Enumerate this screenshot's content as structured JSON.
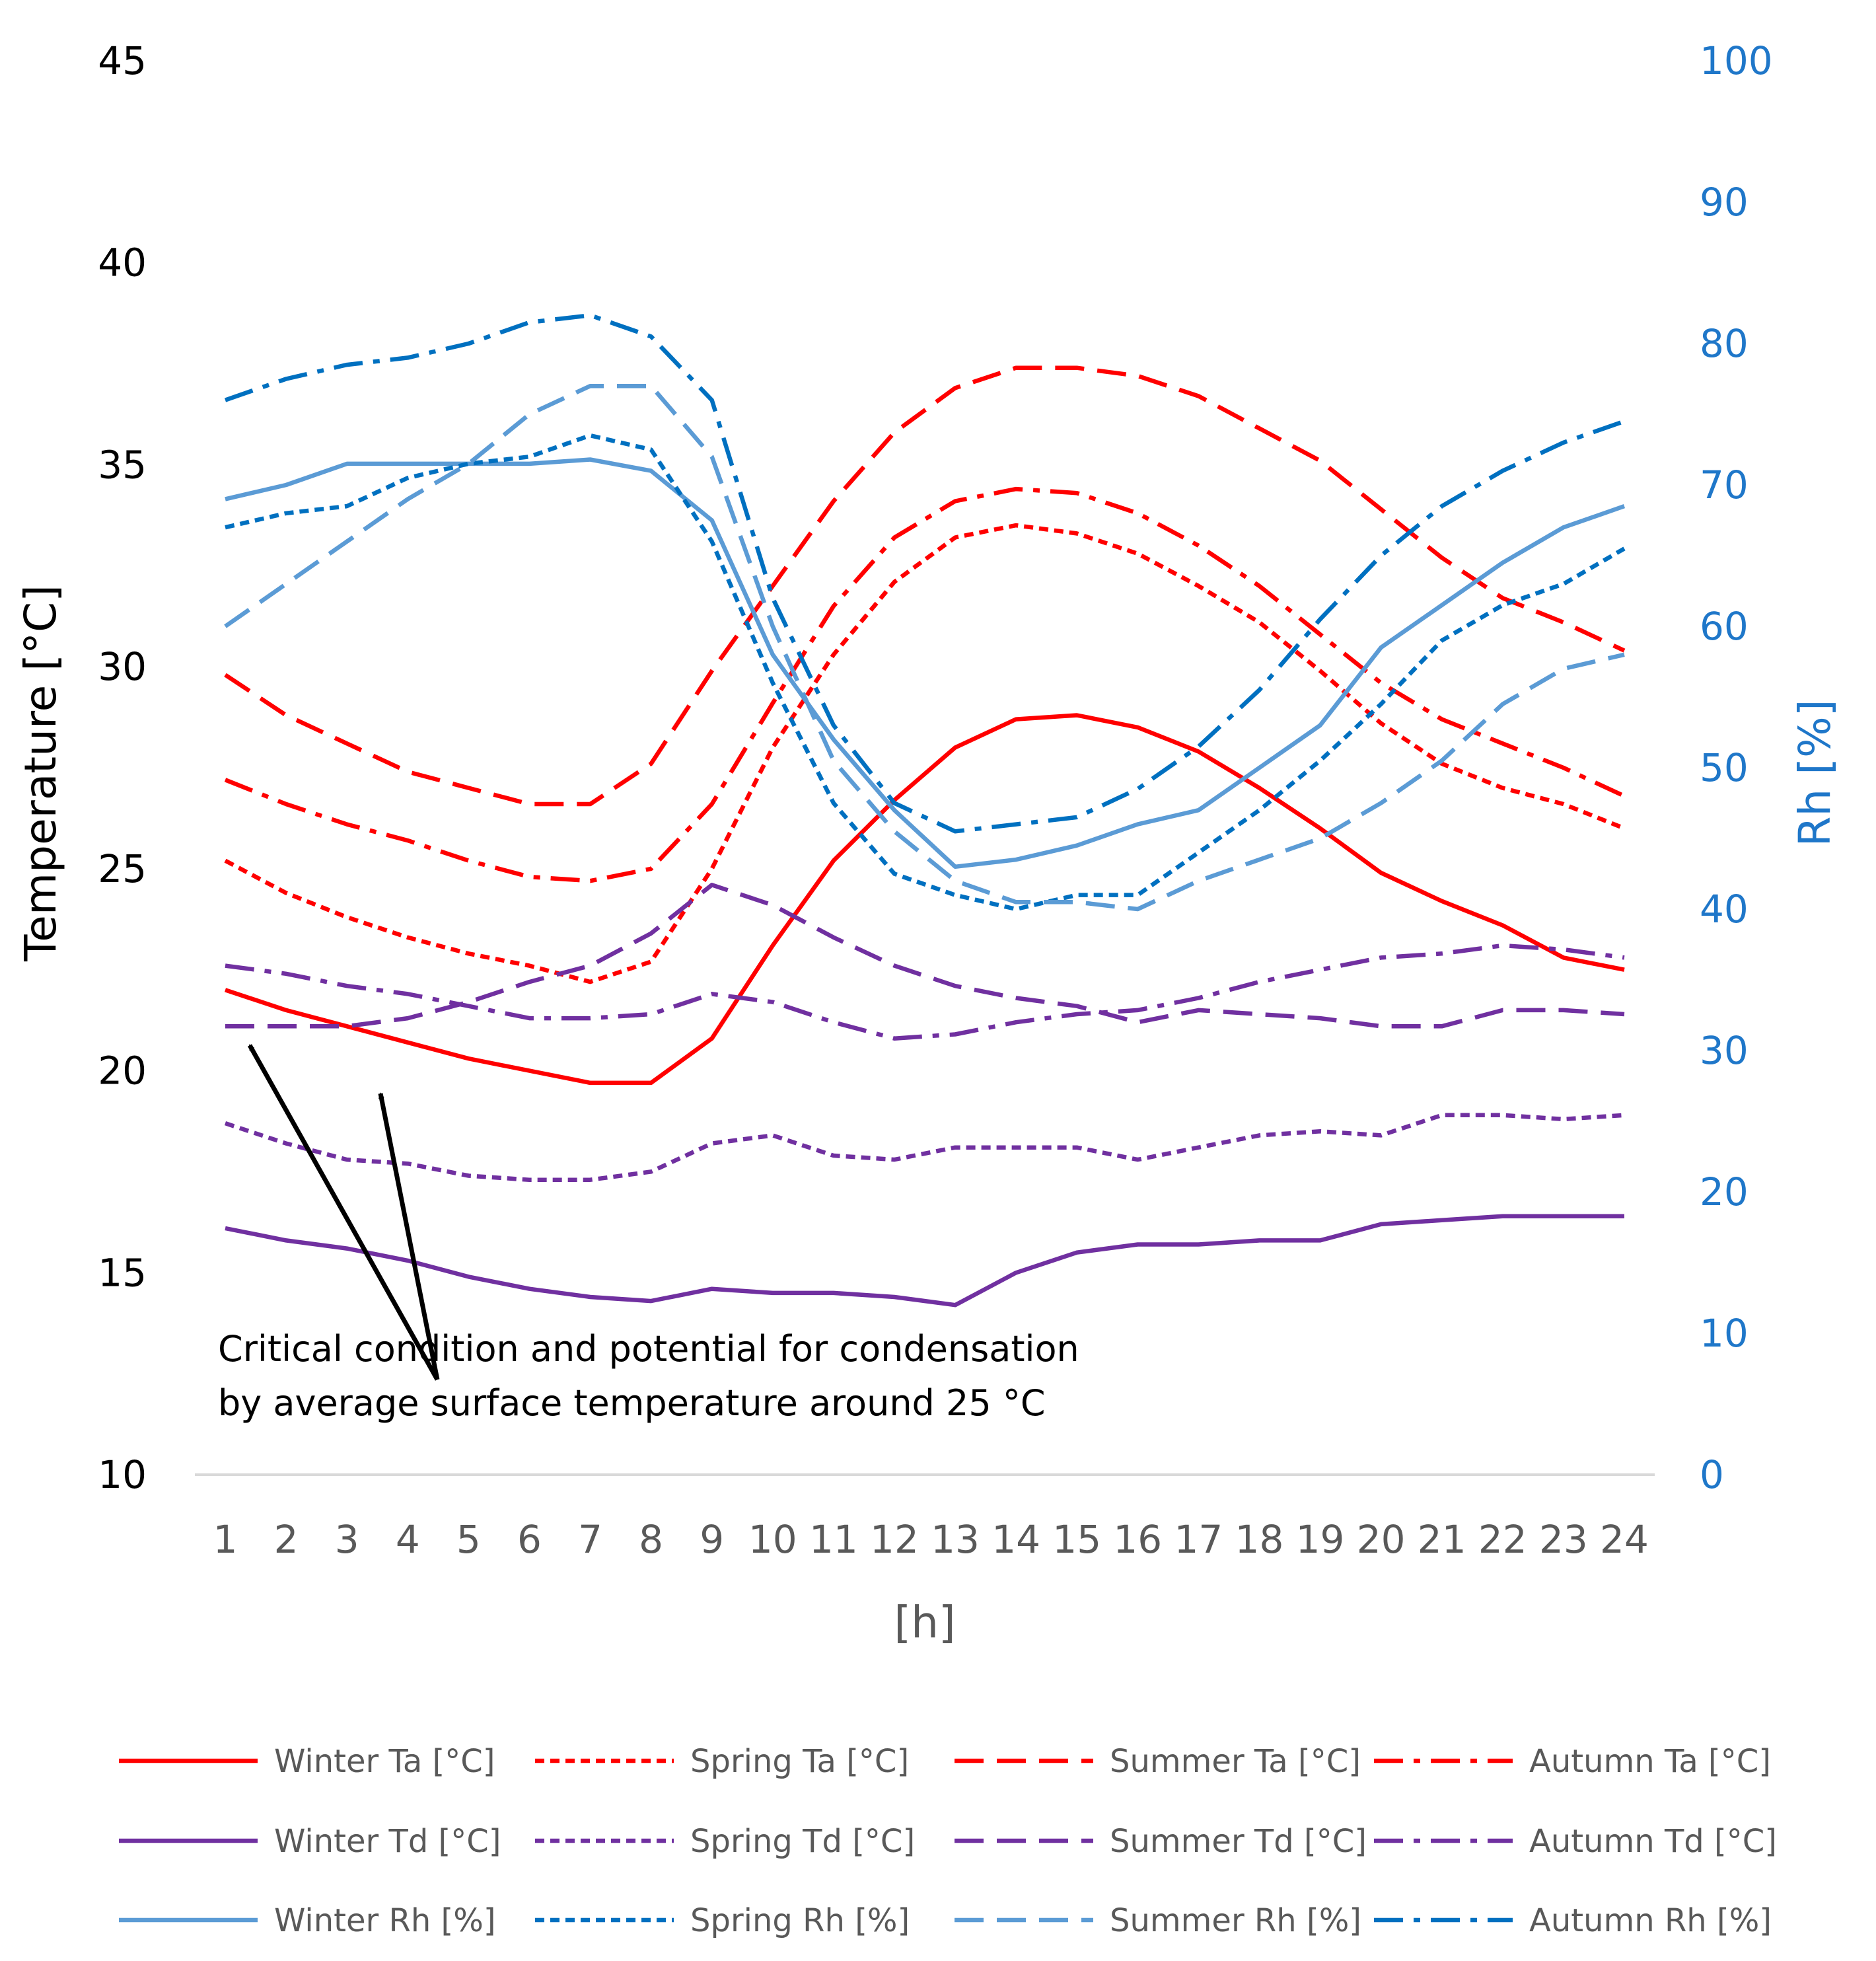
{
  "chart_data": {
    "type": "line",
    "title": "",
    "xlabel": "[h]",
    "ylabel_left": "Temperature [°C]",
    "ylabel_right": "Rh [%]",
    "categories": [
      "1",
      "2",
      "3",
      "4",
      "5",
      "6",
      "7",
      "8",
      "9",
      "10",
      "11",
      "12",
      "13",
      "14",
      "15",
      "16",
      "17",
      "18",
      "19",
      "20",
      "21",
      "22",
      "23",
      "24"
    ],
    "ylim_left": [
      10,
      45
    ],
    "yticks_left": [
      "10",
      "15",
      "20",
      "25",
      "30",
      "35",
      "40",
      "45"
    ],
    "ylim_right": [
      0,
      100
    ],
    "yticks_right": [
      "0",
      "10",
      "20",
      "30",
      "40",
      "50",
      "60",
      "70",
      "80",
      "90",
      "100"
    ],
    "colors": {
      "ta": "#FF0000",
      "td": "#7030A0",
      "rh_light": "#5B9BD5",
      "rh_dark": "#0070C0",
      "arrow": "#000000",
      "axis": "#D9D9D9"
    },
    "annotation": {
      "line1": "Critical condition and potential for condensation",
      "line2": "by average surface temperature around 25 °C"
    },
    "series": [
      {
        "name": "Winter Ta [°C]",
        "axis": "left",
        "color": "#FF0000",
        "style": "solid",
        "values": [
          22.0,
          21.5,
          21.1,
          20.7,
          20.3,
          20.0,
          19.7,
          19.7,
          20.8,
          23.1,
          25.2,
          26.7,
          28.0,
          28.7,
          28.8,
          28.5,
          27.9,
          27.0,
          26.0,
          24.9,
          24.2,
          23.6,
          22.8,
          22.5
        ]
      },
      {
        "name": "Spring Ta [°C]",
        "axis": "left",
        "color": "#FF0000",
        "style": "dot",
        "values": [
          25.2,
          24.4,
          23.8,
          23.3,
          22.9,
          22.6,
          22.2,
          22.7,
          25.0,
          28.0,
          30.3,
          32.1,
          33.2,
          33.5,
          33.3,
          32.8,
          32.0,
          31.1,
          29.9,
          28.6,
          27.6,
          27.0,
          26.6,
          26.0
        ]
      },
      {
        "name": "Summer Ta [°C]",
        "axis": "left",
        "color": "#FF0000",
        "style": "dash",
        "values": [
          29.8,
          28.8,
          28.1,
          27.4,
          27.0,
          26.6,
          26.6,
          27.6,
          29.9,
          32.0,
          34.1,
          35.8,
          36.9,
          37.4,
          37.4,
          37.2,
          36.7,
          35.9,
          35.1,
          33.9,
          32.7,
          31.7,
          31.1,
          30.4
        ]
      },
      {
        "name": "Autumn Ta [°C]",
        "axis": "left",
        "color": "#FF0000",
        "style": "dashdot",
        "values": [
          27.2,
          26.6,
          26.1,
          25.7,
          25.2,
          24.8,
          24.7,
          25.0,
          26.6,
          29.1,
          31.5,
          33.2,
          34.1,
          34.4,
          34.3,
          33.8,
          33.0,
          32.0,
          30.8,
          29.6,
          28.7,
          28.1,
          27.5,
          26.8
        ]
      },
      {
        "name": "Winter Td [°C]",
        "axis": "left",
        "color": "#7030A0",
        "style": "solid",
        "values": [
          16.1,
          15.8,
          15.6,
          15.3,
          14.9,
          14.6,
          14.4,
          14.3,
          14.6,
          14.5,
          14.5,
          14.4,
          14.2,
          15.0,
          15.5,
          15.7,
          15.7,
          15.8,
          15.8,
          16.2,
          16.3,
          16.4,
          16.4,
          16.4
        ]
      },
      {
        "name": "Spring Td [°C]",
        "axis": "left",
        "color": "#7030A0",
        "style": "dot",
        "values": [
          18.7,
          18.2,
          17.8,
          17.7,
          17.4,
          17.3,
          17.3,
          17.5,
          18.2,
          18.4,
          17.9,
          17.8,
          18.1,
          18.1,
          18.1,
          17.8,
          18.1,
          18.4,
          18.5,
          18.4,
          18.9,
          18.9,
          18.8,
          18.9
        ]
      },
      {
        "name": "Summer Td [°C]",
        "axis": "left",
        "color": "#7030A0",
        "style": "dash",
        "values": [
          21.1,
          21.1,
          21.1,
          21.3,
          21.7,
          22.2,
          22.6,
          23.4,
          24.6,
          24.1,
          23.3,
          22.6,
          22.1,
          21.8,
          21.6,
          21.2,
          21.5,
          21.4,
          21.3,
          21.1,
          21.1,
          21.5,
          21.5,
          21.4
        ]
      },
      {
        "name": "Autumn Td [°C]",
        "axis": "left",
        "color": "#7030A0",
        "style": "dashdot",
        "values": [
          22.6,
          22.4,
          22.1,
          21.9,
          21.6,
          21.3,
          21.3,
          21.4,
          21.9,
          21.7,
          21.2,
          20.8,
          20.9,
          21.2,
          21.4,
          21.5,
          21.8,
          22.2,
          22.5,
          22.8,
          22.9,
          23.1,
          23.0,
          22.8
        ]
      },
      {
        "name": "Winter Rh [%]",
        "axis": "right",
        "color": "#5B9BD5",
        "style": "solid",
        "values": [
          69.0,
          70.0,
          71.5,
          71.5,
          71.5,
          71.5,
          71.8,
          71.0,
          67.5,
          58.0,
          52.0,
          47.0,
          43.0,
          43.5,
          44.5,
          46.0,
          47.0,
          50.0,
          53.0,
          58.5,
          61.5,
          64.5,
          67.0,
          68.5
        ]
      },
      {
        "name": "Spring Rh [%]",
        "axis": "right",
        "color": "#0070C0",
        "style": "dot",
        "values": [
          67.0,
          68.0,
          68.5,
          70.5,
          71.5,
          72.0,
          73.5,
          72.5,
          66.0,
          56.0,
          47.5,
          42.5,
          41.0,
          40.0,
          41.0,
          41.0,
          44.0,
          47.0,
          50.5,
          54.5,
          59.0,
          61.5,
          63.0,
          65.5
        ]
      },
      {
        "name": "Summer Rh [%]",
        "axis": "right",
        "color": "#5B9BD5",
        "style": "dash",
        "values": [
          60.0,
          63.0,
          66.0,
          69.0,
          71.5,
          75.0,
          77.0,
          77.0,
          72.0,
          60.0,
          50.5,
          45.5,
          42.0,
          40.5,
          40.5,
          40.0,
          42.0,
          43.5,
          45.0,
          47.5,
          50.5,
          54.5,
          57.0,
          58.0
        ]
      },
      {
        "name": "Autumn Rh [%]",
        "axis": "right",
        "color": "#0070C0",
        "style": "dashdot",
        "values": [
          76.0,
          77.5,
          78.5,
          79.0,
          80.0,
          81.5,
          82.0,
          80.5,
          76.0,
          62.0,
          53.0,
          47.5,
          45.5,
          46.0,
          46.5,
          48.5,
          51.5,
          55.5,
          60.5,
          65.0,
          68.5,
          71.0,
          73.0,
          74.5
        ]
      }
    ]
  }
}
